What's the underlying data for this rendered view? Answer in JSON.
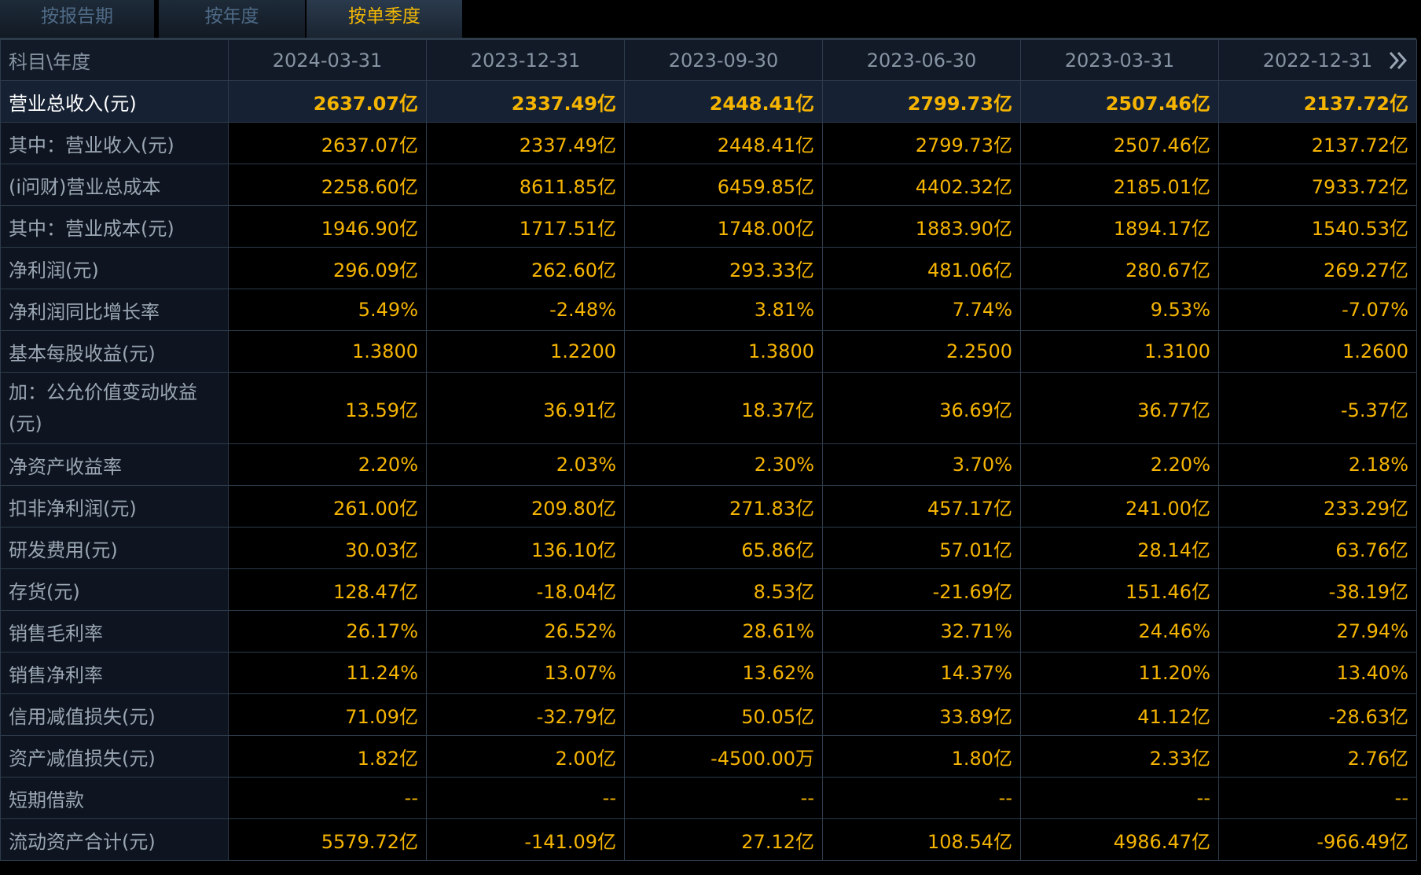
{
  "tabs": [
    {
      "label": "按报告期",
      "active": false
    },
    {
      "label": "按年度",
      "active": false
    },
    {
      "label": "按单季度",
      "active": true
    }
  ],
  "table": {
    "corner_label": "科目\\年度",
    "columns": [
      "2024-03-31",
      "2023-12-31",
      "2023-09-30",
      "2023-06-30",
      "2023-03-31",
      "2022-12-31"
    ],
    "more_icon": "double-chevron-right-icon",
    "rows": [
      {
        "label": "营业总收入(元)",
        "values": [
          "2637.07亿",
          "2337.49亿",
          "2448.41亿",
          "2799.73亿",
          "2507.46亿",
          "2137.72亿"
        ]
      },
      {
        "label": "其中：营业收入(元)",
        "values": [
          "2637.07亿",
          "2337.49亿",
          "2448.41亿",
          "2799.73亿",
          "2507.46亿",
          "2137.72亿"
        ]
      },
      {
        "label": "(i问财)营业总成本",
        "values": [
          "2258.60亿",
          "8611.85亿",
          "6459.85亿",
          "4402.32亿",
          "2185.01亿",
          "7933.72亿"
        ]
      },
      {
        "label": "其中：营业成本(元)",
        "values": [
          "1946.90亿",
          "1717.51亿",
          "1748.00亿",
          "1883.90亿",
          "1894.17亿",
          "1540.53亿"
        ]
      },
      {
        "label": "净利润(元)",
        "values": [
          "296.09亿",
          "262.60亿",
          "293.33亿",
          "481.06亿",
          "280.67亿",
          "269.27亿"
        ]
      },
      {
        "label": "净利润同比增长率",
        "values": [
          "5.49%",
          "-2.48%",
          "3.81%",
          "7.74%",
          "9.53%",
          "-7.07%"
        ]
      },
      {
        "label": "基本每股收益(元)",
        "values": [
          "1.3800",
          "1.2200",
          "1.3800",
          "2.2500",
          "1.3100",
          "1.2600"
        ]
      },
      {
        "label": "加：公允价值变动收益(元)",
        "values": [
          "13.59亿",
          "36.91亿",
          "18.37亿",
          "36.69亿",
          "36.77亿",
          "-5.37亿"
        ]
      },
      {
        "label": "净资产收益率",
        "values": [
          "2.20%",
          "2.03%",
          "2.30%",
          "3.70%",
          "2.20%",
          "2.18%"
        ]
      },
      {
        "label": "扣非净利润(元)",
        "values": [
          "261.00亿",
          "209.80亿",
          "271.83亿",
          "457.17亿",
          "241.00亿",
          "233.29亿"
        ]
      },
      {
        "label": "研发费用(元)",
        "values": [
          "30.03亿",
          "136.10亿",
          "65.86亿",
          "57.01亿",
          "28.14亿",
          "63.76亿"
        ]
      },
      {
        "label": "存货(元)",
        "values": [
          "128.47亿",
          "-18.04亿",
          "8.53亿",
          "-21.69亿",
          "151.46亿",
          "-38.19亿"
        ]
      },
      {
        "label": "销售毛利率",
        "values": [
          "26.17%",
          "26.52%",
          "28.61%",
          "32.71%",
          "24.46%",
          "27.94%"
        ]
      },
      {
        "label": "销售净利率",
        "values": [
          "11.24%",
          "13.07%",
          "13.62%",
          "14.37%",
          "11.20%",
          "13.40%"
        ]
      },
      {
        "label": "信用减值损失(元)",
        "values": [
          "71.09亿",
          "-32.79亿",
          "50.05亿",
          "33.89亿",
          "41.12亿",
          "-28.63亿"
        ]
      },
      {
        "label": "资产减值损失(元)",
        "values": [
          "1.82亿",
          "2.00亿",
          "-4500.00万",
          "1.80亿",
          "2.33亿",
          "2.76亿"
        ]
      },
      {
        "label": "短期借款",
        "values": [
          "--",
          "--",
          "--",
          "--",
          "--",
          "--"
        ]
      },
      {
        "label": "流动资产合计(元)",
        "values": [
          "5579.72亿",
          "-141.09亿",
          "27.12亿",
          "108.54亿",
          "4986.47亿",
          "-966.49亿"
        ]
      }
    ]
  },
  "colors": {
    "value": "#f5b400",
    "label": "#9aa6b4",
    "header_text": "#8693a2",
    "active_tab": "#f2b705",
    "inactive_tab": "#4f6a86",
    "grid": "#2d3b4b"
  }
}
